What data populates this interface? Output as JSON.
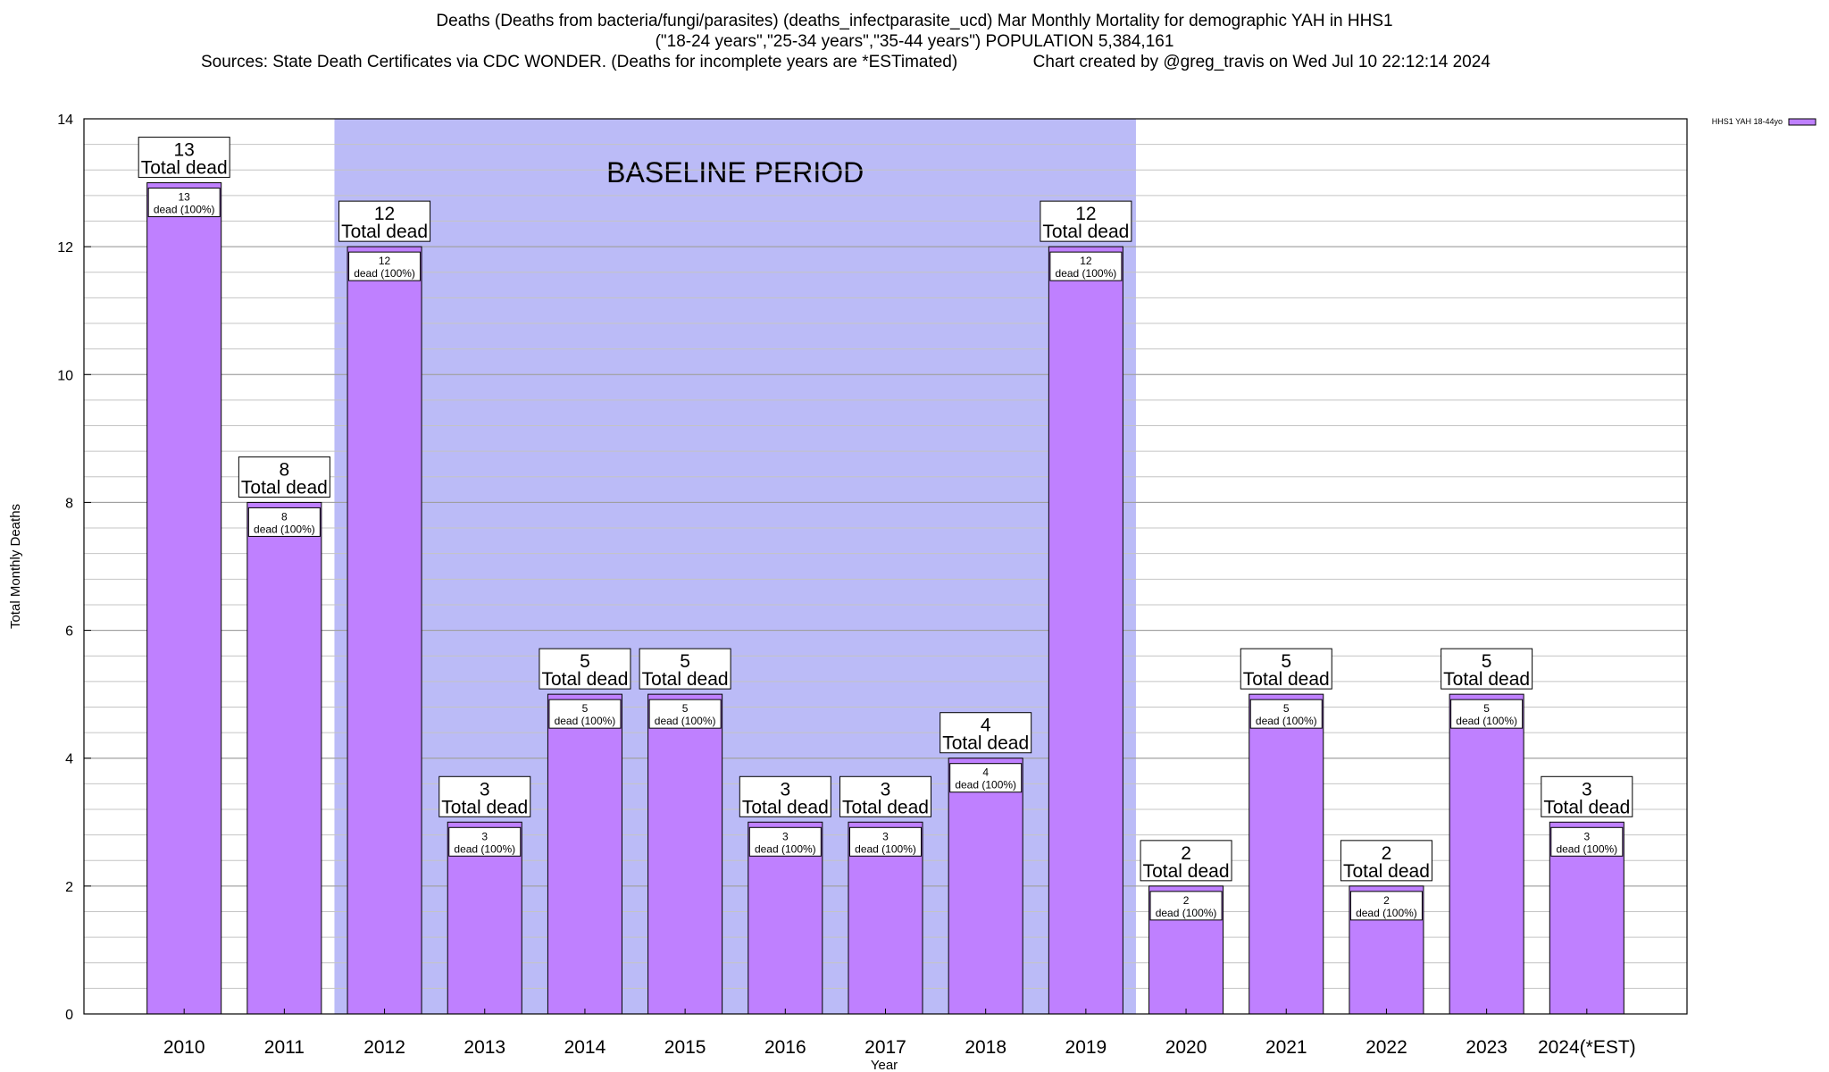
{
  "title_lines": [
    "Deaths (Deaths from bacteria/fungi/parasites) (deaths_infectparasite_ucd) Mar Monthly Mortality for demographic YAH in HHS1",
    "(\"18-24 years\",\"25-34 years\",\"35-44 years\") POPULATION 5,384,161",
    "Sources: State Death Certificates via CDC WONDER. (Deaths for incomplete years are *ESTimated)                Chart created by @greg_travis on Wed Jul 10 22:12:14 2024"
  ],
  "chart_data": {
    "type": "bar",
    "xlabel": "Year",
    "ylabel": "Total Monthly Deaths",
    "ylim": [
      0,
      14
    ],
    "yticks": [
      0,
      2,
      4,
      6,
      8,
      10,
      12,
      14
    ],
    "minor_step": 0.4,
    "grid": true,
    "legend": {
      "entry": "HHS1 YAH 18-44yo",
      "placement": "top-right"
    },
    "colors": {
      "bar": "#bf80ff",
      "baseline": "#bbbbf7",
      "legend_swatch": "#bf80ff"
    },
    "baseline": {
      "label": "BASELINE PERIOD",
      "from": "2012",
      "to": "2019"
    },
    "categories": [
      "2010",
      "2011",
      "2012",
      "2013",
      "2014",
      "2015",
      "2016",
      "2017",
      "2018",
      "2019",
      "2020",
      "2021",
      "2022",
      "2023",
      "2024(*EST)"
    ],
    "values": [
      13,
      8,
      12,
      3,
      5,
      5,
      3,
      3,
      4,
      12,
      2,
      5,
      2,
      5,
      3
    ],
    "total_label_text": "Total dead",
    "inner_label_text": "dead (100%)"
  }
}
